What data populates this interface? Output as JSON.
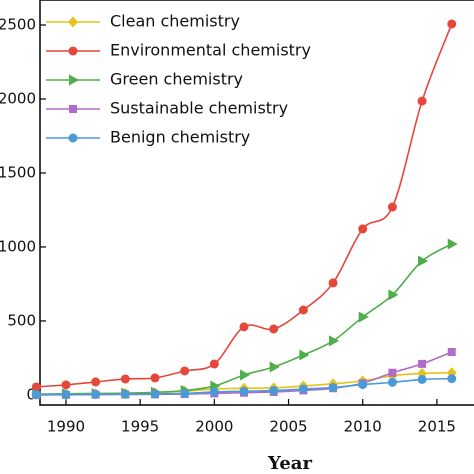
{
  "chart_data": {
    "type": "line",
    "x_label": "Year",
    "x": [
      1988,
      1990,
      1992,
      1994,
      1996,
      1998,
      2000,
      2002,
      2004,
      2006,
      2008,
      2010,
      2012,
      2014,
      2016
    ],
    "series": [
      {
        "name": "Clean chemistry",
        "color": "#e6c21c",
        "marker": "diamond",
        "values": [
          3,
          5,
          8,
          10,
          15,
          25,
          40,
          45,
          48,
          60,
          75,
          95,
          130,
          145,
          150
        ]
      },
      {
        "name": "Environmental chemistry",
        "color": "#e5473b",
        "marker": "circle",
        "values": [
          54,
          68,
          88,
          108,
          115,
          162,
          209,
          460,
          446,
          574,
          757,
          1122,
          1270,
          1986,
          2507
        ]
      },
      {
        "name": "Green chemistry",
        "color": "#4fae4a",
        "marker": "triangle",
        "values": [
          5,
          8,
          10,
          12,
          18,
          30,
          60,
          135,
          189,
          270,
          365,
          527,
          676,
          905,
          1020
        ]
      },
      {
        "name": "Sustainable chemistry",
        "color": "#b06cc8",
        "marker": "square",
        "values": [
          0,
          1,
          2,
          3,
          4,
          6,
          10,
          15,
          20,
          30,
          45,
          80,
          150,
          210,
          290
        ]
      },
      {
        "name": "Benign chemistry",
        "color": "#4a9ad6",
        "marker": "circle",
        "values": [
          2,
          3,
          4,
          5,
          7,
          10,
          20,
          25,
          30,
          40,
          50,
          70,
          85,
          105,
          110
        ]
      }
    ],
    "xlim": [
      1988.25,
      2017.5
    ],
    "xticks": [
      1990,
      1995,
      2000,
      2005,
      2010,
      2015
    ],
    "ylim": [
      -68,
      2669
    ],
    "yticks": [
      0,
      500,
      1000,
      1500,
      2000,
      2500
    ],
    "legend": "upper left"
  }
}
